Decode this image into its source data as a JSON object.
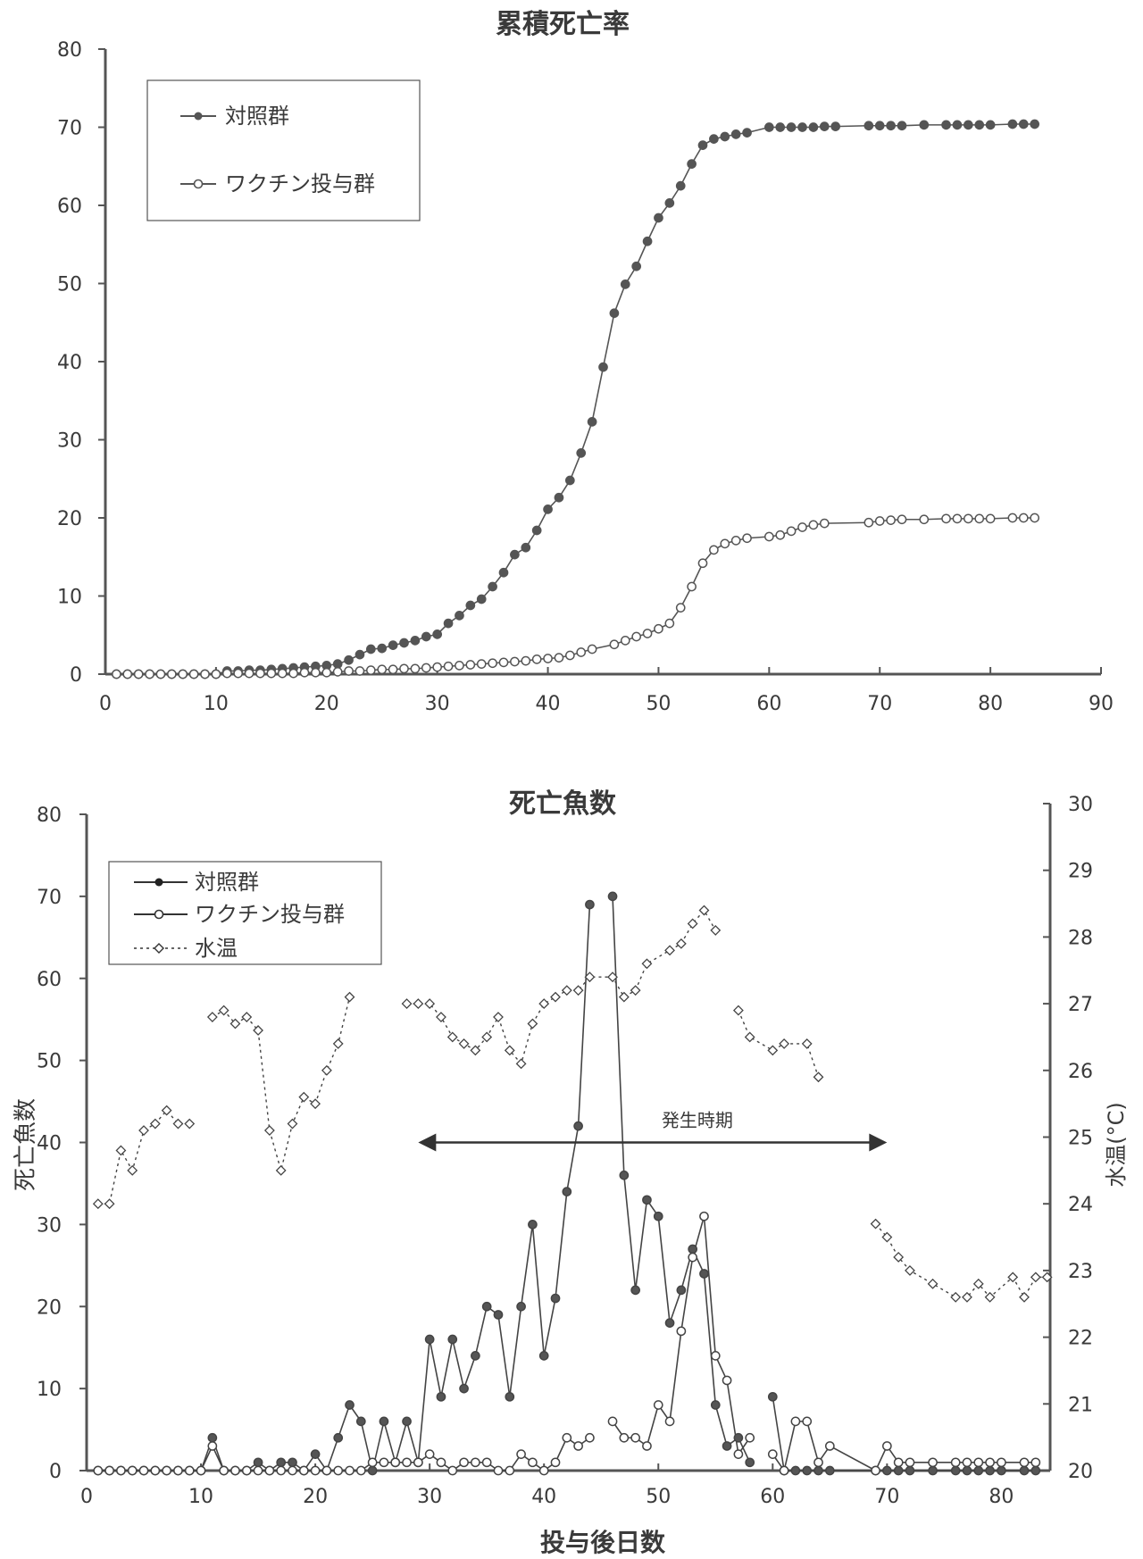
{
  "chart_data": [
    {
      "type": "line",
      "title": "累積死亡率",
      "xlabel": "",
      "ylabel": "",
      "xlim": [
        0,
        90
      ],
      "ylim": [
        0,
        80
      ],
      "xticks": [
        0,
        10,
        20,
        30,
        40,
        50,
        60,
        70,
        80,
        90
      ],
      "yticks": [
        0,
        10,
        20,
        30,
        40,
        50,
        60,
        70,
        80
      ],
      "grid": false,
      "legend_position": "top-left",
      "series": [
        {
          "name": "対照群",
          "marker": "filled-circle",
          "color": "#555555",
          "x": [
            1,
            2,
            3,
            4,
            5,
            6,
            7,
            8,
            9,
            10,
            11,
            12,
            13,
            14,
            15,
            16,
            17,
            18,
            19,
            20,
            21,
            22,
            23,
            24,
            25,
            26,
            27,
            28,
            29,
            30,
            31,
            32,
            33,
            34,
            35,
            36,
            37,
            38,
            39,
            40,
            41,
            42,
            43,
            44,
            45,
            46,
            47,
            48,
            49,
            50,
            51,
            52,
            53,
            54,
            55,
            56,
            57,
            58,
            60,
            61,
            62,
            63,
            64,
            65,
            66,
            69,
            70,
            71,
            72,
            74,
            76,
            77,
            78,
            79,
            80,
            82,
            83,
            84
          ],
          "y": [
            0,
            0,
            0,
            0,
            0,
            0,
            0,
            0,
            0,
            0,
            0.4,
            0.4,
            0.5,
            0.5,
            0.6,
            0.7,
            0.8,
            0.9,
            1.0,
            1.1,
            1.3,
            1.8,
            2.5,
            3.2,
            3.3,
            3.7,
            4.0,
            4.3,
            4.8,
            5.1,
            6.5,
            7.5,
            8.8,
            9.6,
            11.2,
            13.0,
            15.3,
            16.2,
            18.4,
            21.1,
            22.6,
            24.8,
            28.3,
            32.3,
            39.3,
            46.2,
            49.9,
            52.2,
            55.4,
            58.4,
            60.3,
            62.5,
            65.3,
            67.7,
            68.5,
            68.8,
            69.1,
            69.3,
            70.0,
            70.0,
            70.0,
            70.0,
            70.0,
            70.1,
            70.1,
            70.2,
            70.2,
            70.2,
            70.2,
            70.3,
            70.3,
            70.3,
            70.3,
            70.3,
            70.3,
            70.4,
            70.4,
            70.4
          ]
        },
        {
          "name": "ワクチン投与群",
          "marker": "open-circle",
          "color": "#555555",
          "x": [
            1,
            2,
            3,
            4,
            5,
            6,
            7,
            8,
            9,
            10,
            11,
            12,
            13,
            14,
            15,
            16,
            17,
            18,
            19,
            20,
            21,
            22,
            23,
            24,
            25,
            26,
            27,
            28,
            29,
            30,
            31,
            32,
            33,
            34,
            35,
            36,
            37,
            38,
            39,
            40,
            41,
            42,
            43,
            44,
            46,
            47,
            48,
            49,
            50,
            51,
            52,
            53,
            54,
            55,
            56,
            57,
            58,
            60,
            61,
            62,
            63,
            64,
            65,
            69,
            70,
            71,
            72,
            74,
            76,
            77,
            78,
            79,
            80,
            82,
            83,
            84
          ],
          "y": [
            0,
            0,
            0,
            0,
            0,
            0,
            0,
            0,
            0,
            0,
            0.1,
            0.1,
            0.1,
            0.1,
            0.1,
            0.1,
            0.1,
            0.2,
            0.2,
            0.2,
            0.3,
            0.4,
            0.4,
            0.5,
            0.6,
            0.6,
            0.7,
            0.7,
            0.8,
            0.9,
            1.0,
            1.1,
            1.2,
            1.3,
            1.4,
            1.5,
            1.6,
            1.7,
            1.9,
            2.0,
            2.1,
            2.4,
            2.8,
            3.2,
            3.8,
            4.3,
            4.8,
            5.2,
            5.8,
            6.5,
            8.5,
            11.2,
            14.2,
            15.9,
            16.7,
            17.1,
            17.4,
            17.6,
            17.8,
            18.3,
            18.8,
            19.1,
            19.3,
            19.4,
            19.6,
            19.7,
            19.8,
            19.8,
            19.9,
            19.9,
            19.9,
            19.9,
            19.9,
            20.0,
            20.0,
            20.0
          ]
        }
      ]
    },
    {
      "type": "line",
      "title": "死亡魚数",
      "xlabel": "投与後日数",
      "ylabel": "死亡魚数",
      "y2label": "水温(°C)",
      "xlim": [
        0,
        83
      ],
      "ylim": [
        0,
        80
      ],
      "y2lim": [
        20,
        30
      ],
      "xticks": [
        0,
        10,
        20,
        30,
        40,
        50,
        60,
        70,
        80
      ],
      "yticks": [
        0,
        10,
        20,
        30,
        40,
        50,
        60,
        70,
        80
      ],
      "y2ticks": [
        20,
        21,
        22,
        23,
        24,
        25,
        26,
        27,
        28,
        29,
        30
      ],
      "grid": false,
      "legend_position": "top-left",
      "annotation": {
        "text": "発生時期",
        "x_start": 29,
        "x_end": 70,
        "y": 40
      },
      "series": [
        {
          "name": "対照群",
          "marker": "filled-circle",
          "color": "#555555",
          "axis": "left",
          "x": [
            1,
            2,
            3,
            4,
            5,
            6,
            7,
            8,
            9,
            10,
            11,
            12,
            13,
            14,
            15,
            16,
            17,
            18,
            19,
            20,
            21,
            22,
            23,
            24,
            25,
            26,
            27,
            28,
            29,
            30,
            31,
            32,
            33,
            34,
            35,
            36,
            37,
            38,
            39,
            40,
            41,
            42,
            43,
            44,
            45,
            46,
            47,
            48,
            49,
            50,
            51,
            52,
            53,
            54,
            55,
            56,
            57,
            58,
            59,
            60,
            61,
            62,
            63,
            64,
            65,
            69,
            70,
            71,
            72,
            74,
            76,
            77,
            78,
            79,
            80,
            82,
            83
          ],
          "y": [
            0,
            0,
            0,
            0,
            0,
            0,
            0,
            0,
            0,
            0,
            4,
            0,
            0,
            0,
            1,
            0,
            1,
            1,
            0,
            2,
            0,
            4,
            8,
            6,
            0,
            6,
            1,
            6,
            1,
            16,
            9,
            16,
            10,
            14,
            20,
            19,
            9,
            20,
            30,
            14,
            21,
            34,
            42,
            69,
            null,
            70,
            36,
            22,
            33,
            31,
            18,
            22,
            27,
            24,
            8,
            3,
            4,
            1,
            null,
            9,
            0,
            0,
            0,
            0,
            0,
            0,
            0,
            0,
            0,
            0,
            0,
            0,
            0,
            0,
            0,
            0,
            0
          ]
        },
        {
          "name": "ワクチン投与群",
          "marker": "open-circle",
          "color": "#555555",
          "axis": "left",
          "x": [
            1,
            2,
            3,
            4,
            5,
            6,
            7,
            8,
            9,
            10,
            11,
            12,
            13,
            14,
            15,
            16,
            17,
            18,
            19,
            20,
            21,
            22,
            23,
            24,
            25,
            26,
            27,
            28,
            29,
            30,
            31,
            32,
            33,
            34,
            35,
            36,
            37,
            38,
            39,
            40,
            41,
            42,
            43,
            44,
            45,
            46,
            47,
            48,
            49,
            50,
            51,
            52,
            53,
            54,
            55,
            56,
            57,
            58,
            59,
            60,
            61,
            62,
            63,
            64,
            65,
            69,
            70,
            71,
            72,
            74,
            76,
            77,
            78,
            79,
            80,
            82,
            83
          ],
          "y": [
            0,
            0,
            0,
            0,
            0,
            0,
            0,
            0,
            0,
            0,
            3,
            0,
            0,
            0,
            0,
            0,
            0,
            0,
            0,
            0,
            0,
            0,
            0,
            0,
            1,
            1,
            1,
            1,
            1,
            2,
            1,
            0,
            1,
            1,
            1,
            0,
            0,
            2,
            1,
            0,
            1,
            4,
            3,
            4,
            null,
            6,
            4,
            4,
            3,
            8,
            6,
            17,
            26,
            31,
            14,
            11,
            2,
            4,
            null,
            2,
            0,
            6,
            6,
            1,
            3,
            0,
            3,
            1,
            1,
            1,
            1,
            1,
            1,
            1,
            1,
            1,
            1
          ]
        },
        {
          "name": "水温",
          "marker": "open-diamond",
          "color": "#555555",
          "axis": "right",
          "line_style": "dotted",
          "segments": [
            {
              "x": [
                1,
                2,
                3,
                4,
                5,
                6,
                7,
                8,
                9
              ],
              "y": [
                24.0,
                24.0,
                24.8,
                24.5,
                25.1,
                25.2,
                25.4,
                25.2,
                25.2
              ]
            },
            {
              "x": [
                11,
                12,
                13,
                14,
                15,
                16,
                17,
                18,
                19,
                20,
                21,
                22,
                23
              ],
              "y": [
                26.8,
                26.9,
                26.7,
                26.8,
                26.6,
                25.1,
                24.5,
                25.2,
                25.6,
                25.5,
                26.0,
                26.4,
                27.1
              ]
            },
            {
              "x": [
                28,
                29,
                30,
                31,
                32,
                33,
                34,
                35,
                36,
                37,
                38,
                39,
                40,
                41,
                42,
                43,
                44,
                46,
                47,
                48,
                49,
                51,
                52,
                53,
                54,
                55
              ],
              "y": [
                27.0,
                27.0,
                27.0,
                26.8,
                26.5,
                26.4,
                26.3,
                26.5,
                26.8,
                26.3,
                26.1,
                26.7,
                27.0,
                27.1,
                27.2,
                27.2,
                27.4,
                27.4,
                27.1,
                27.2,
                27.6,
                27.8,
                27.9,
                28.2,
                28.4,
                28.1
              ]
            },
            {
              "x": [
                57,
                58,
                60,
                61,
                63,
                64
              ],
              "y": [
                26.9,
                26.5,
                26.3,
                26.4,
                26.4,
                25.9
              ]
            },
            {
              "x": [
                69,
                70,
                71,
                72,
                74,
                76,
                77,
                78,
                79,
                81,
                82,
                83,
                84
              ],
              "y": [
                23.7,
                23.5,
                23.2,
                23.0,
                22.8,
                22.6,
                22.6,
                22.8,
                22.6,
                22.9,
                22.6,
                22.9,
                22.9
              ]
            }
          ]
        }
      ]
    }
  ]
}
